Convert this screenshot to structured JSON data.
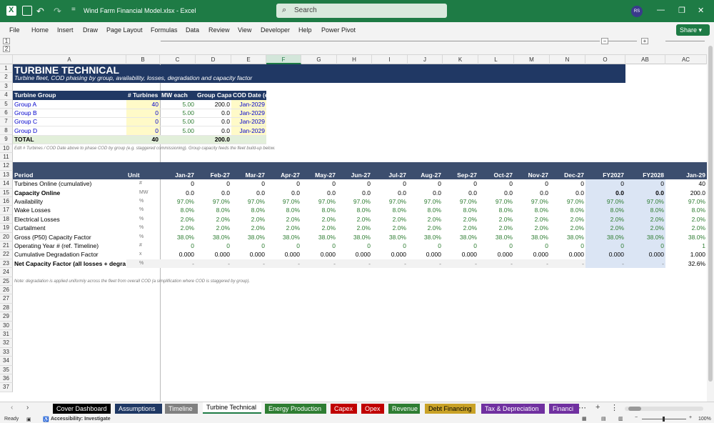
{
  "titlebar": {
    "title": "Wind Farm Financial Model.xlsx  -  Excel",
    "search_placeholder": "Search",
    "avatar_initials": "RS"
  },
  "menu": [
    "File",
    "Home",
    "Insert",
    "Draw",
    "Page Layout",
    "Formulas",
    "Data",
    "Review",
    "View",
    "Developer",
    "Help",
    "Power Pivot"
  ],
  "share_label": "Share",
  "columns": [
    "A",
    "B",
    "C",
    "D",
    "E",
    "F",
    "G",
    "H",
    "I",
    "J",
    "K",
    "L",
    "M",
    "N",
    "O",
    "AB",
    "AC"
  ],
  "selected_column": "F",
  "row_numbers": [
    "1",
    "2",
    "3",
    "4",
    "5",
    "6",
    "7",
    "8",
    "9",
    "10",
    "11",
    "12",
    "13",
    "14",
    "15",
    "16",
    "17",
    "18",
    "19",
    "20",
    "21",
    "22",
    "23",
    "24",
    "25",
    "26",
    "27",
    "28",
    "29",
    "30",
    "31",
    "32",
    "33",
    "34",
    "35",
    "36",
    "37"
  ],
  "sheet": {
    "title": "TURBINE TECHNICAL",
    "subtitle": "Turbine fleet, COD phasing by group, availability, losses, degradation and capacity factor",
    "group_table": {
      "headers": [
        "Turbine Group",
        "# Turbines",
        "MW each",
        "Group Capac",
        "COD Date (e"
      ],
      "rows": [
        [
          "Group A",
          "40",
          "5.00",
          "200.0",
          "Jan-2029"
        ],
        [
          "Group B",
          "0",
          "5.00",
          "0.0",
          "Jan-2029"
        ],
        [
          "Group C",
          "0",
          "5.00",
          "0.0",
          "Jan-2029"
        ],
        [
          "Group D",
          "0",
          "5.00",
          "0.0",
          "Jan-2029"
        ]
      ],
      "total": [
        "TOTAL",
        "40",
        "",
        "200.0",
        ""
      ]
    },
    "note1": "Edit # Turbines / COD Date above to phase COD by group (e.g. staggered commissioning). Group capacity feeds the fleet build-up below.",
    "period_header": {
      "label": "Period",
      "unit": "Unit",
      "periods": [
        "Jan-27",
        "Feb-27",
        "Mar-27",
        "Apr-27",
        "May-27",
        "Jun-27",
        "Jul-27",
        "Aug-27",
        "Sep-27",
        "Oct-27",
        "Nov-27",
        "Dec-27",
        "FY2027",
        "FY2028",
        "Jan-29"
      ]
    },
    "rows": [
      {
        "label": "Turbines Online (cumulative)",
        "unit": "#",
        "values": [
          "0",
          "0",
          "0",
          "0",
          "0",
          "0",
          "0",
          "0",
          "0",
          "0",
          "0",
          "0",
          "0",
          "0",
          "40"
        ],
        "style": "plain"
      },
      {
        "label": "Capacity Online",
        "unit": "MW",
        "values": [
          "0.0",
          "0.0",
          "0.0",
          "0.0",
          "0.0",
          "0.0",
          "0.0",
          "0.0",
          "0.0",
          "0.0",
          "0.0",
          "0.0",
          "0.0",
          "0.0",
          "200.0"
        ],
        "style": "bold"
      },
      {
        "label": "Availability",
        "unit": "%",
        "values": [
          "97.0%",
          "97.0%",
          "97.0%",
          "97.0%",
          "97.0%",
          "97.0%",
          "97.0%",
          "97.0%",
          "97.0%",
          "97.0%",
          "97.0%",
          "97.0%",
          "97.0%",
          "97.0%",
          "97.0%"
        ],
        "style": "green"
      },
      {
        "label": "Wake Losses",
        "unit": "%",
        "values": [
          "8.0%",
          "8.0%",
          "8.0%",
          "8.0%",
          "8.0%",
          "8.0%",
          "8.0%",
          "8.0%",
          "8.0%",
          "8.0%",
          "8.0%",
          "8.0%",
          "8.0%",
          "8.0%",
          "8.0%"
        ],
        "style": "green"
      },
      {
        "label": "Electrical Losses",
        "unit": "%",
        "values": [
          "2.0%",
          "2.0%",
          "2.0%",
          "2.0%",
          "2.0%",
          "2.0%",
          "2.0%",
          "2.0%",
          "2.0%",
          "2.0%",
          "2.0%",
          "2.0%",
          "2.0%",
          "2.0%",
          "2.0%"
        ],
        "style": "green"
      },
      {
        "label": "Curtailment",
        "unit": "%",
        "values": [
          "2.0%",
          "2.0%",
          "2.0%",
          "2.0%",
          "2.0%",
          "2.0%",
          "2.0%",
          "2.0%",
          "2.0%",
          "2.0%",
          "2.0%",
          "2.0%",
          "2.0%",
          "2.0%",
          "2.0%"
        ],
        "style": "green"
      },
      {
        "label": "Gross (P50) Capacity Factor",
        "unit": "%",
        "values": [
          "38.0%",
          "38.0%",
          "38.0%",
          "38.0%",
          "38.0%",
          "38.0%",
          "38.0%",
          "38.0%",
          "38.0%",
          "38.0%",
          "38.0%",
          "38.0%",
          "38.0%",
          "38.0%",
          "38.0%"
        ],
        "style": "green"
      },
      {
        "label": "Operating Year # (ref. Timeline)",
        "unit": "#",
        "values": [
          "0",
          "0",
          "0",
          "0",
          "0",
          "0",
          "0",
          "0",
          "0",
          "0",
          "0",
          "0",
          "0",
          "0",
          "1"
        ],
        "style": "green"
      },
      {
        "label": "Cumulative Degradation Factor",
        "unit": "x",
        "values": [
          "0.000",
          "0.000",
          "0.000",
          "0.000",
          "0.000",
          "0.000",
          "0.000",
          "0.000",
          "0.000",
          "0.000",
          "0.000",
          "0.000",
          "0.000",
          "0.000",
          "1.000"
        ],
        "style": "plain"
      },
      {
        "label": "Net Capacity Factor (all losses + degra",
        "unit": "%",
        "values": [
          "-",
          "-",
          "-",
          "-",
          "-",
          "-",
          "-",
          "-",
          "-",
          "-",
          "-",
          "-",
          "-",
          "-",
          "32.6%"
        ],
        "style": "boldgrey"
      }
    ],
    "note2": "Note: degradation is applied uniformly across the fleet from overall COD (a simplification where COD is staggered by group)."
  },
  "tabs": [
    {
      "label": "Cover Dashboard",
      "bg": "#000000",
      "fg": "#ffffff"
    },
    {
      "label": "Assumptions",
      "bg": "#1f3864",
      "fg": "#ffffff"
    },
    {
      "label": "Timeline",
      "bg": "#808080",
      "fg": "#ffffff"
    },
    {
      "label": "Turbine Technical",
      "bg": "#ffffff",
      "fg": "#000000",
      "active": true
    },
    {
      "label": "Energy Production",
      "bg": "#2e7d32",
      "fg": "#ffffff"
    },
    {
      "label": "Capex",
      "bg": "#c00000",
      "fg": "#ffffff"
    },
    {
      "label": "Opex",
      "bg": "#c00000",
      "fg": "#ffffff"
    },
    {
      "label": "Revenue",
      "bg": "#2e7d32",
      "fg": "#ffffff"
    },
    {
      "label": "Debt Financing",
      "bg": "#c9a227",
      "fg": "#000000"
    },
    {
      "label": "Tax & Depreciation",
      "bg": "#7030a0",
      "fg": "#ffffff"
    },
    {
      "label": "Financi",
      "bg": "#7030a0",
      "fg": "#ffffff"
    }
  ],
  "status": {
    "ready": "Ready",
    "accessibility": "Accessibility: Investigate",
    "zoom": "100%"
  }
}
